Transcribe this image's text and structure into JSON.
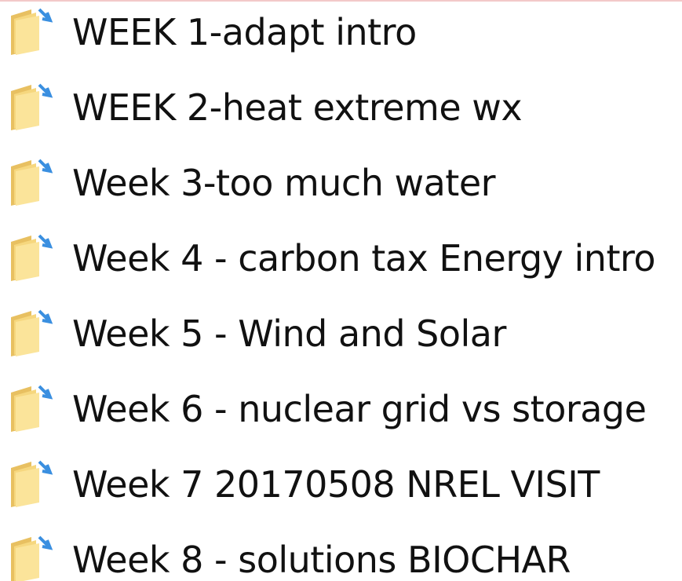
{
  "items": [
    {
      "label": "WEEK 1-adapt intro"
    },
    {
      "label": "WEEK 2-heat extreme wx"
    },
    {
      "label": "Week 3-too much water"
    },
    {
      "label": "Week 4 - carbon tax Energy intro"
    },
    {
      "label": "Week 5 - Wind and Solar"
    },
    {
      "label": "Week 6 - nuclear grid vs storage"
    },
    {
      "label": "Week 7 20170508 NREL VISIT"
    },
    {
      "label": "Week 8 - solutions BIOCHAR"
    }
  ]
}
